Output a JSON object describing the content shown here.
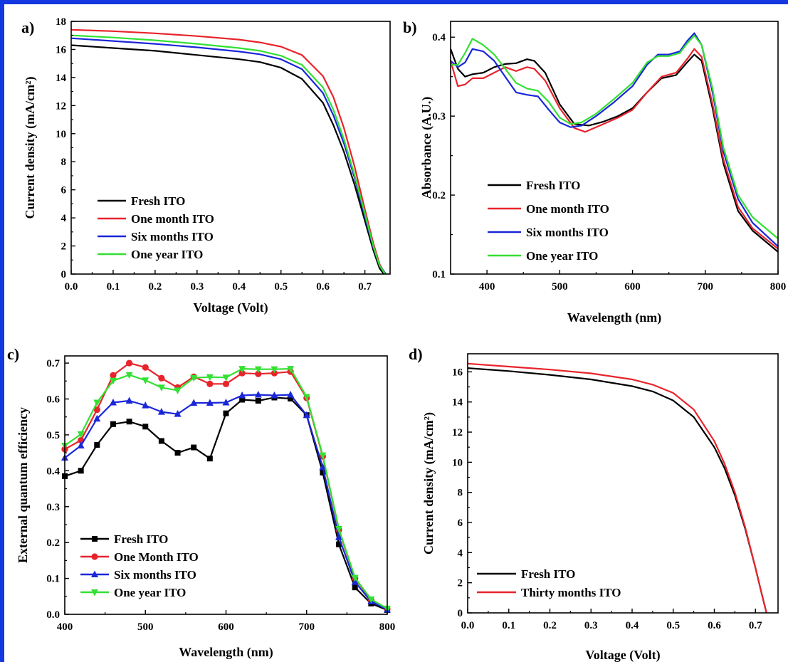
{
  "colors": {
    "frame": "#1338e0",
    "black": "#000000",
    "red": "#e8242b",
    "blue": "#1a27d8",
    "green": "#33e033"
  },
  "chart_data": [
    {
      "panel": "a)",
      "type": "line",
      "xlabel": "Voltage (Volt)",
      "ylabel": "Current density (mA/cm²)",
      "xlim": [
        0,
        0.76
      ],
      "ylim": [
        0,
        18
      ],
      "xticks": [
        0.0,
        0.1,
        0.2,
        0.3,
        0.4,
        0.5,
        0.6,
        0.7
      ],
      "xtick_labels": [
        "0.0",
        "0.1",
        "0.2",
        "0.3",
        "0.4",
        "0.5",
        "0.6",
        "0.7"
      ],
      "yticks": [
        0,
        2,
        4,
        6,
        8,
        10,
        12,
        14,
        16,
        18
      ],
      "ytick_labels": [
        "0",
        "2",
        "4",
        "6",
        "8",
        "10",
        "12",
        "14",
        "16",
        "18"
      ],
      "legend_position": "bottom-left",
      "series": [
        {
          "name": "Fresh ITO",
          "color": "#000000",
          "x": [
            0,
            0.1,
            0.2,
            0.3,
            0.4,
            0.45,
            0.5,
            0.55,
            0.6,
            0.625,
            0.65,
            0.675,
            0.7,
            0.72,
            0.735,
            0.745
          ],
          "y": [
            16.3,
            16.1,
            15.9,
            15.6,
            15.3,
            15.1,
            14.7,
            13.9,
            12.2,
            10.6,
            8.7,
            6.4,
            3.8,
            1.7,
            0.4,
            0
          ]
        },
        {
          "name": "One month ITO",
          "color": "#e8242b",
          "x": [
            0,
            0.1,
            0.2,
            0.3,
            0.4,
            0.45,
            0.5,
            0.55,
            0.6,
            0.625,
            0.65,
            0.675,
            0.7,
            0.72,
            0.735,
            0.748
          ],
          "y": [
            17.4,
            17.3,
            17.15,
            16.95,
            16.7,
            16.5,
            16.2,
            15.6,
            14.1,
            12.6,
            10.4,
            7.7,
            4.6,
            2.2,
            0.7,
            0
          ]
        },
        {
          "name": "Six months ITO",
          "color": "#1a27d8",
          "x": [
            0,
            0.1,
            0.2,
            0.3,
            0.4,
            0.45,
            0.5,
            0.55,
            0.6,
            0.625,
            0.65,
            0.675,
            0.7,
            0.72,
            0.735,
            0.75
          ],
          "y": [
            16.8,
            16.6,
            16.4,
            16.15,
            15.85,
            15.65,
            15.3,
            14.6,
            12.9,
            11.3,
            9.3,
            6.9,
            4.1,
            1.9,
            0.6,
            0
          ]
        },
        {
          "name": "One year ITO",
          "color": "#33e033",
          "x": [
            0,
            0.1,
            0.2,
            0.3,
            0.4,
            0.45,
            0.5,
            0.55,
            0.6,
            0.625,
            0.65,
            0.675,
            0.7,
            0.72,
            0.735,
            0.748
          ],
          "y": [
            17.0,
            16.85,
            16.65,
            16.4,
            16.1,
            15.9,
            15.55,
            14.9,
            13.3,
            11.7,
            9.6,
            7.1,
            4.3,
            2.0,
            0.6,
            0
          ]
        }
      ]
    },
    {
      "panel": "b)",
      "type": "line",
      "xlabel": "Wavelength (nm)",
      "ylabel": "Absorbance (A.U.)",
      "xlim": [
        350,
        800
      ],
      "ylim": [
        0.1,
        0.42
      ],
      "xticks": [
        400,
        500,
        600,
        700,
        800
      ],
      "xtick_labels": [
        "400",
        "500",
        "600",
        "700",
        "800"
      ],
      "yticks": [
        0.1,
        0.2,
        0.3,
        0.4
      ],
      "ytick_labels": [
        "0.1",
        "0.2",
        "0.3",
        "0.4"
      ],
      "legend_position": "bottom-left",
      "series": [
        {
          "name": "Fresh ITO",
          "color": "#000000",
          "x": [
            350,
            360,
            370,
            380,
            395,
            410,
            425,
            440,
            455,
            465,
            480,
            500,
            520,
            540,
            560,
            580,
            600,
            620,
            640,
            660,
            675,
            685,
            695,
            710,
            725,
            745,
            765,
            800
          ],
          "y": [
            0.385,
            0.36,
            0.35,
            0.353,
            0.355,
            0.362,
            0.366,
            0.367,
            0.372,
            0.37,
            0.355,
            0.315,
            0.29,
            0.288,
            0.293,
            0.3,
            0.31,
            0.33,
            0.348,
            0.352,
            0.368,
            0.378,
            0.37,
            0.31,
            0.24,
            0.18,
            0.155,
            0.128
          ]
        },
        {
          "name": "One month ITO",
          "color": "#e8242b",
          "x": [
            350,
            360,
            370,
            380,
            395,
            410,
            425,
            440,
            455,
            465,
            480,
            500,
            520,
            535,
            560,
            580,
            600,
            620,
            640,
            660,
            675,
            685,
            695,
            710,
            725,
            745,
            765,
            800
          ],
          "y": [
            0.37,
            0.338,
            0.34,
            0.348,
            0.348,
            0.355,
            0.362,
            0.357,
            0.362,
            0.36,
            0.345,
            0.31,
            0.285,
            0.28,
            0.29,
            0.298,
            0.308,
            0.33,
            0.35,
            0.355,
            0.372,
            0.385,
            0.375,
            0.315,
            0.245,
            0.185,
            0.158,
            0.132
          ]
        },
        {
          "name": "Six months ITO",
          "color": "#1a27d8",
          "x": [
            350,
            360,
            370,
            380,
            395,
            410,
            425,
            440,
            455,
            470,
            485,
            500,
            515,
            530,
            550,
            575,
            600,
            620,
            635,
            650,
            665,
            675,
            685,
            695,
            710,
            725,
            745,
            765,
            800
          ],
          "y": [
            0.37,
            0.362,
            0.368,
            0.385,
            0.382,
            0.37,
            0.35,
            0.33,
            0.327,
            0.325,
            0.308,
            0.292,
            0.286,
            0.288,
            0.3,
            0.318,
            0.338,
            0.365,
            0.378,
            0.378,
            0.382,
            0.395,
            0.405,
            0.39,
            0.33,
            0.255,
            0.195,
            0.165,
            0.135
          ]
        },
        {
          "name": "One year ITO",
          "color": "#33e033",
          "x": [
            350,
            360,
            370,
            380,
            395,
            410,
            425,
            440,
            455,
            470,
            485,
            500,
            515,
            530,
            550,
            575,
            600,
            620,
            635,
            650,
            665,
            675,
            685,
            695,
            710,
            725,
            745,
            765,
            800
          ],
          "y": [
            0.365,
            0.365,
            0.38,
            0.398,
            0.39,
            0.378,
            0.36,
            0.342,
            0.335,
            0.332,
            0.318,
            0.298,
            0.29,
            0.292,
            0.303,
            0.322,
            0.342,
            0.368,
            0.376,
            0.376,
            0.38,
            0.392,
            0.402,
            0.39,
            0.335,
            0.26,
            0.2,
            0.172,
            0.145
          ]
        }
      ]
    },
    {
      "panel": "c)",
      "type": "line",
      "xlabel": "Wavelength (nm)",
      "ylabel": "External quantum efficiency",
      "xlim": [
        400,
        800
      ],
      "ylim": [
        0,
        0.72
      ],
      "xticks": [
        400,
        500,
        600,
        700,
        800
      ],
      "xtick_labels": [
        "400",
        "500",
        "600",
        "700",
        "800"
      ],
      "yticks": [
        0.0,
        0.1,
        0.2,
        0.3,
        0.4,
        0.5,
        0.6,
        0.7
      ],
      "ytick_labels": [
        "0.0",
        "0.1",
        "0.2",
        "0.3",
        "0.4",
        "0.5",
        "0.6",
        "0.7"
      ],
      "legend_position": "bottom-left",
      "x": [
        400,
        420,
        440,
        460,
        480,
        500,
        520,
        540,
        560,
        580,
        600,
        620,
        640,
        660,
        680,
        700,
        720,
        740,
        760,
        780,
        800
      ],
      "series": [
        {
          "name": "Fresh ITO",
          "color": "#000000",
          "marker": "square",
          "values": [
            0.385,
            0.4,
            0.472,
            0.53,
            0.537,
            0.523,
            0.483,
            0.45,
            0.465,
            0.434,
            0.56,
            0.598,
            0.595,
            0.604,
            0.601,
            0.555,
            0.395,
            0.195,
            0.075,
            0.03,
            0.012
          ]
        },
        {
          "name": "One Month ITO",
          "color": "#e8242b",
          "marker": "circle",
          "values": [
            0.46,
            0.485,
            0.57,
            0.666,
            0.7,
            0.688,
            0.658,
            0.632,
            0.662,
            0.642,
            0.642,
            0.672,
            0.67,
            0.672,
            0.676,
            0.603,
            0.44,
            0.235,
            0.1,
            0.04,
            0.015
          ]
        },
        {
          "name": "Six months ITO",
          "color": "#1a27d8",
          "marker": "triangle-up",
          "values": [
            0.436,
            0.47,
            0.545,
            0.59,
            0.595,
            0.582,
            0.564,
            0.558,
            0.589,
            0.589,
            0.59,
            0.61,
            0.612,
            0.61,
            0.612,
            0.555,
            0.41,
            0.215,
            0.09,
            0.036,
            0.013
          ]
        },
        {
          "name": "One year ITO",
          "color": "#33e033",
          "marker": "triangle-down",
          "values": [
            0.47,
            0.502,
            0.59,
            0.651,
            0.667,
            0.652,
            0.632,
            0.624,
            0.659,
            0.661,
            0.66,
            0.684,
            0.683,
            0.683,
            0.684,
            0.606,
            0.443,
            0.238,
            0.102,
            0.042,
            0.016
          ]
        }
      ]
    },
    {
      "panel": "d)",
      "type": "line",
      "xlabel": "Voltage (Volt)",
      "ylabel": "Current density (mA/cm²)",
      "xlim": [
        0,
        0.755
      ],
      "ylim": [
        0,
        17.2
      ],
      "xticks": [
        0.0,
        0.1,
        0.2,
        0.3,
        0.4,
        0.5,
        0.6,
        0.7
      ],
      "xtick_labels": [
        "0.0",
        "0.1",
        "0.2",
        "0.3",
        "0.4",
        "0.5",
        "0.6",
        "0.7"
      ],
      "yticks": [
        0,
        2,
        4,
        6,
        8,
        10,
        12,
        14,
        16
      ],
      "ytick_labels": [
        "0",
        "2",
        "4",
        "6",
        "8",
        "10",
        "12",
        "14",
        "16"
      ],
      "legend_position": "bottom-left",
      "series": [
        {
          "name": "Fresh ITO",
          "color": "#000000",
          "x": [
            0,
            0.1,
            0.2,
            0.3,
            0.4,
            0.45,
            0.5,
            0.55,
            0.6,
            0.625,
            0.65,
            0.675,
            0.7,
            0.715,
            0.727
          ],
          "y": [
            16.25,
            16.05,
            15.8,
            15.5,
            15.05,
            14.7,
            14.1,
            13.0,
            11.0,
            9.6,
            7.8,
            5.6,
            3.0,
            1.3,
            0
          ]
        },
        {
          "name": "Thirty months ITO",
          "color": "#e8242b",
          "x": [
            0,
            0.1,
            0.2,
            0.3,
            0.4,
            0.45,
            0.5,
            0.55,
            0.6,
            0.625,
            0.65,
            0.675,
            0.7,
            0.715,
            0.727
          ],
          "y": [
            16.55,
            16.35,
            16.15,
            15.9,
            15.5,
            15.15,
            14.6,
            13.5,
            11.4,
            9.9,
            8.0,
            5.7,
            3.0,
            1.3,
            0
          ]
        }
      ]
    }
  ]
}
